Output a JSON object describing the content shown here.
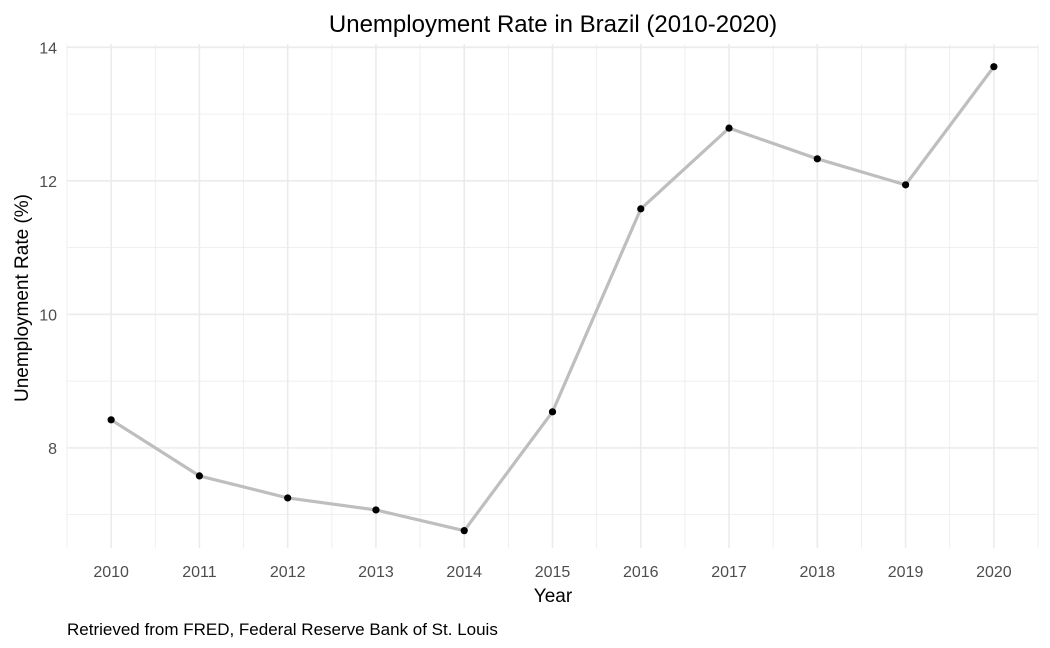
{
  "chart_data": {
    "type": "line",
    "title": "Unemployment Rate in Brazil (2010-2020)",
    "xlabel": "Year",
    "ylabel": "Unemployment Rate (%)",
    "caption": "Retrieved from FRED, Federal Reserve Bank of St. Louis",
    "x": [
      2010,
      2011,
      2012,
      2013,
      2014,
      2015,
      2016,
      2017,
      2018,
      2019,
      2020
    ],
    "x_tick_labels": [
      "2010",
      "2011",
      "2012",
      "2013",
      "2014",
      "2015",
      "2016",
      "2017",
      "2018",
      "2019",
      "2020"
    ],
    "y_ticks": [
      8,
      10,
      12,
      14
    ],
    "y_tick_labels": [
      "8",
      "10",
      "12",
      "14"
    ],
    "series": [
      {
        "values": [
          8.42,
          7.58,
          7.25,
          7.07,
          6.76,
          8.54,
          11.58,
          12.79,
          12.33,
          11.94,
          13.71
        ]
      }
    ],
    "xlim": [
      2009.5,
      2020.5
    ],
    "ylim": [
      6.5,
      14.05
    ],
    "grid": true,
    "legend": "none",
    "line_color": "#bebebe",
    "point_color": "#000000",
    "grid_color": "#ebebeb"
  }
}
